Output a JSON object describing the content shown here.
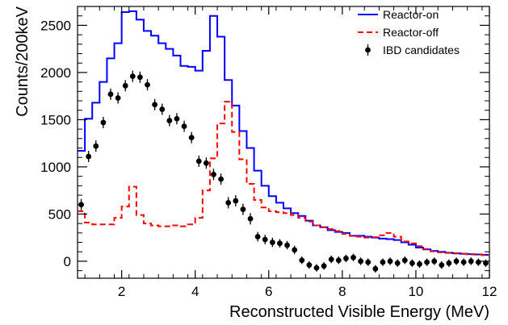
{
  "chart_data": {
    "type": "line",
    "title": "",
    "xlabel": "Reconstructed Visible Energy (MeV)",
    "ylabel": "Counts/200keV",
    "xlim": [
      0.8,
      12
    ],
    "ylim": [
      -180,
      2700
    ],
    "x_ticks": [
      2,
      4,
      6,
      8,
      10,
      12
    ],
    "y_ticks": [
      0,
      500,
      1000,
      1500,
      2000,
      2500
    ],
    "bin_width": 0.2,
    "legend_position": "top-right",
    "legend": [
      "Reactor-on",
      "Reactor-off",
      "IBD candidates"
    ],
    "series": [
      {
        "name": "Reactor-on",
        "style": "step",
        "color": "#0000ff",
        "bin_edges": [
          0.8,
          1.0,
          1.2,
          1.4,
          1.6,
          1.8,
          2.0,
          2.2,
          2.4,
          2.6,
          2.8,
          3.0,
          3.2,
          3.4,
          3.6,
          3.8,
          4.0,
          4.2,
          4.4,
          4.6,
          4.8,
          5.0,
          5.2,
          5.4,
          5.6,
          5.8,
          6.0,
          6.2,
          6.4,
          6.6,
          6.8,
          7.0,
          7.2,
          7.4,
          7.6,
          7.8,
          8.0,
          8.2,
          8.4,
          8.6,
          8.8,
          9.0,
          9.2,
          9.4,
          9.6,
          9.8,
          10.0,
          10.2,
          10.4,
          10.6,
          10.8,
          11.0,
          11.2,
          11.4,
          11.6,
          11.8,
          12.0
        ],
        "values": [
          1170,
          1510,
          1680,
          1900,
          2150,
          2310,
          2640,
          2650,
          2560,
          2440,
          2390,
          2310,
          2250,
          2180,
          2070,
          2060,
          2020,
          2230,
          2600,
          2380,
          1920,
          1650,
          1380,
          1200,
          960,
          800,
          690,
          620,
          560,
          510,
          480,
          430,
          380,
          360,
          330,
          310,
          300,
          270,
          270,
          260,
          250,
          240,
          235,
          225,
          200,
          175,
          145,
          125,
          110,
          100,
          90,
          85,
          80,
          75,
          72,
          68
        ]
      },
      {
        "name": "Reactor-off",
        "style": "step-dashed",
        "color": "#ff0000",
        "bin_edges": [
          0.8,
          1.0,
          1.2,
          1.4,
          1.6,
          1.8,
          2.0,
          2.2,
          2.4,
          2.6,
          2.8,
          3.0,
          3.2,
          3.4,
          3.6,
          3.8,
          4.0,
          4.2,
          4.4,
          4.6,
          4.8,
          5.0,
          5.2,
          5.4,
          5.6,
          5.8,
          6.0,
          6.2,
          6.4,
          6.6,
          6.8,
          7.0,
          7.2,
          7.4,
          7.6,
          7.8,
          8.0,
          8.2,
          8.4,
          8.6,
          8.8,
          9.0,
          9.2,
          9.4,
          9.6,
          9.8,
          10.0,
          10.2,
          10.4,
          10.6,
          10.8,
          11.0,
          11.2,
          11.4,
          11.6,
          11.8,
          12.0
        ],
        "values": [
          530,
          410,
          390,
          390,
          390,
          460,
          580,
          790,
          490,
          400,
          380,
          370,
          370,
          380,
          370,
          390,
          460,
          750,
          1090,
          1460,
          1690,
          1370,
          1080,
          820,
          650,
          570,
          530,
          520,
          510,
          490,
          460,
          420,
          380,
          360,
          340,
          320,
          290,
          270,
          260,
          250,
          255,
          275,
          300,
          260,
          210,
          190,
          160,
          130,
          105,
          95,
          88,
          82,
          78,
          72,
          70,
          65
        ]
      },
      {
        "name": "IBD candidates",
        "style": "points-errorbars",
        "color": "#000000",
        "x": [
          0.9,
          1.1,
          1.3,
          1.5,
          1.7,
          1.9,
          2.1,
          2.3,
          2.5,
          2.7,
          2.9,
          3.1,
          3.3,
          3.5,
          3.7,
          3.9,
          4.1,
          4.3,
          4.5,
          4.7,
          4.9,
          5.1,
          5.3,
          5.5,
          5.7,
          5.9,
          6.1,
          6.3,
          6.5,
          6.7,
          6.9,
          7.1,
          7.3,
          7.5,
          7.7,
          7.9,
          8.1,
          8.3,
          8.5,
          8.7,
          8.9,
          9.1,
          9.3,
          9.5,
          9.7,
          9.9,
          10.1,
          10.3,
          10.5,
          10.7,
          10.9,
          11.1,
          11.3,
          11.5,
          11.7,
          11.9
        ],
        "y": [
          600,
          1110,
          1220,
          1470,
          1770,
          1730,
          1860,
          1960,
          1950,
          1870,
          1660,
          1610,
          1490,
          1510,
          1430,
          1310,
          1060,
          1040,
          920,
          870,
          620,
          640,
          550,
          450,
          260,
          230,
          200,
          190,
          170,
          120,
          10,
          -40,
          -70,
          -50,
          20,
          10,
          30,
          40,
          0,
          -10,
          -80,
          -10,
          0,
          -20,
          10,
          -20,
          -30,
          -10,
          0,
          -40,
          -20,
          0,
          -10,
          0,
          -10,
          -20
        ],
        "err": [
          60,
          60,
          60,
          60,
          60,
          60,
          60,
          60,
          60,
          60,
          60,
          60,
          60,
          60,
          60,
          60,
          60,
          60,
          60,
          60,
          60,
          60,
          60,
          60,
          50,
          50,
          50,
          45,
          45,
          45,
          40,
          40,
          40,
          40,
          40,
          40,
          40,
          40,
          40,
          40,
          40,
          40,
          40,
          40,
          40,
          40,
          40,
          40,
          40,
          40,
          40,
          40,
          40,
          40,
          40,
          40
        ]
      }
    ]
  }
}
